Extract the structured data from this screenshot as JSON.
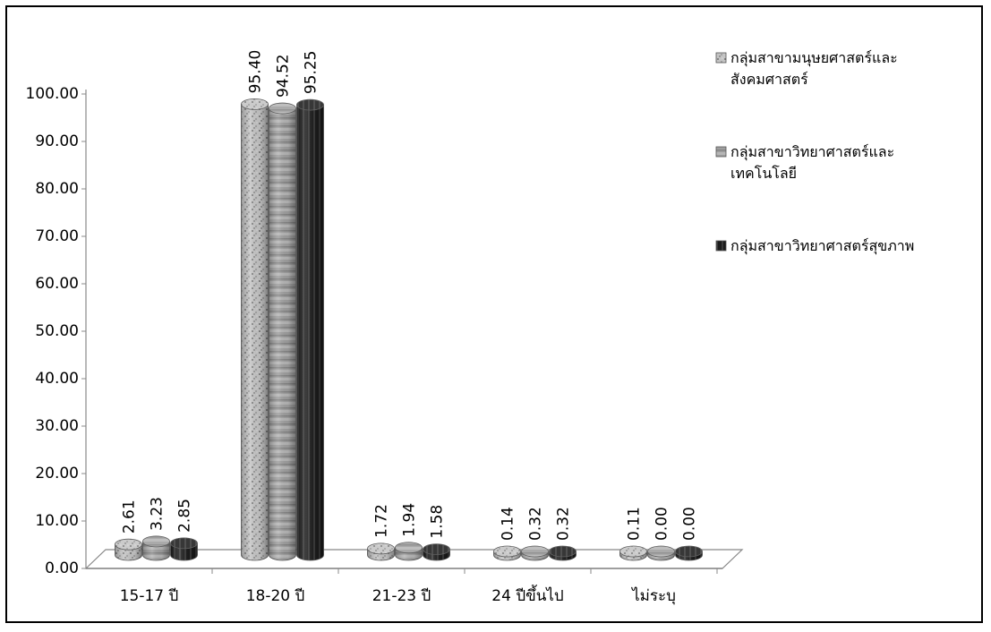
{
  "chart_data": {
    "type": "bar",
    "categories": [
      "15-17 ปี",
      "18-20 ปี",
      "21-23 ปี",
      "24 ปีขึ้นไป",
      "ไม่ระบุ"
    ],
    "series": [
      {
        "name": "กลุ่มสาขามนุษยศาสตร์และสังคมศาสตร์",
        "legend_lines": [
          "กลุ่มสาขามนุษยศาสตร์และ",
          "สังคมศาสตร์"
        ],
        "values": [
          2.61,
          95.4,
          1.72,
          0.14,
          0.11
        ],
        "labels": [
          "2.61",
          "95.40",
          "1.72",
          "0.14",
          "0.11"
        ],
        "color": "#b9b9b9",
        "pattern": "speckled"
      },
      {
        "name": "กลุ่มสาขาวิทยาศาสตร์และเทคโนโลยี",
        "legend_lines": [
          "กลุ่มสาขาวิทยาศาสตร์และ",
          "เทคโนโลยี"
        ],
        "values": [
          3.23,
          94.52,
          1.94,
          0.32,
          0.0
        ],
        "labels": [
          "3.23",
          "94.52",
          "1.94",
          "0.32",
          "0.00"
        ],
        "color": "#9a9a9a",
        "pattern": "rings"
      },
      {
        "name": "กลุ่มสาขาวิทยาศาสตร์สุขภาพ",
        "legend_lines": [
          "กลุ่มสาขาวิทยาศาสตร์สุขภาพ"
        ],
        "values": [
          2.85,
          95.25,
          1.58,
          0.32,
          0.0
        ],
        "labels": [
          "2.85",
          "95.25",
          "1.58",
          "0.32",
          "0.00"
        ],
        "color": "#222222",
        "pattern": "stripes"
      }
    ],
    "y_ticks": [
      "0.00",
      "10.00",
      "20.00",
      "30.00",
      "40.00",
      "50.00",
      "60.00",
      "70.00",
      "80.00",
      "90.00",
      "100.00"
    ],
    "ylim": [
      0,
      100
    ],
    "legend_position": "right",
    "grid": false,
    "style": "3d-cylinder"
  }
}
